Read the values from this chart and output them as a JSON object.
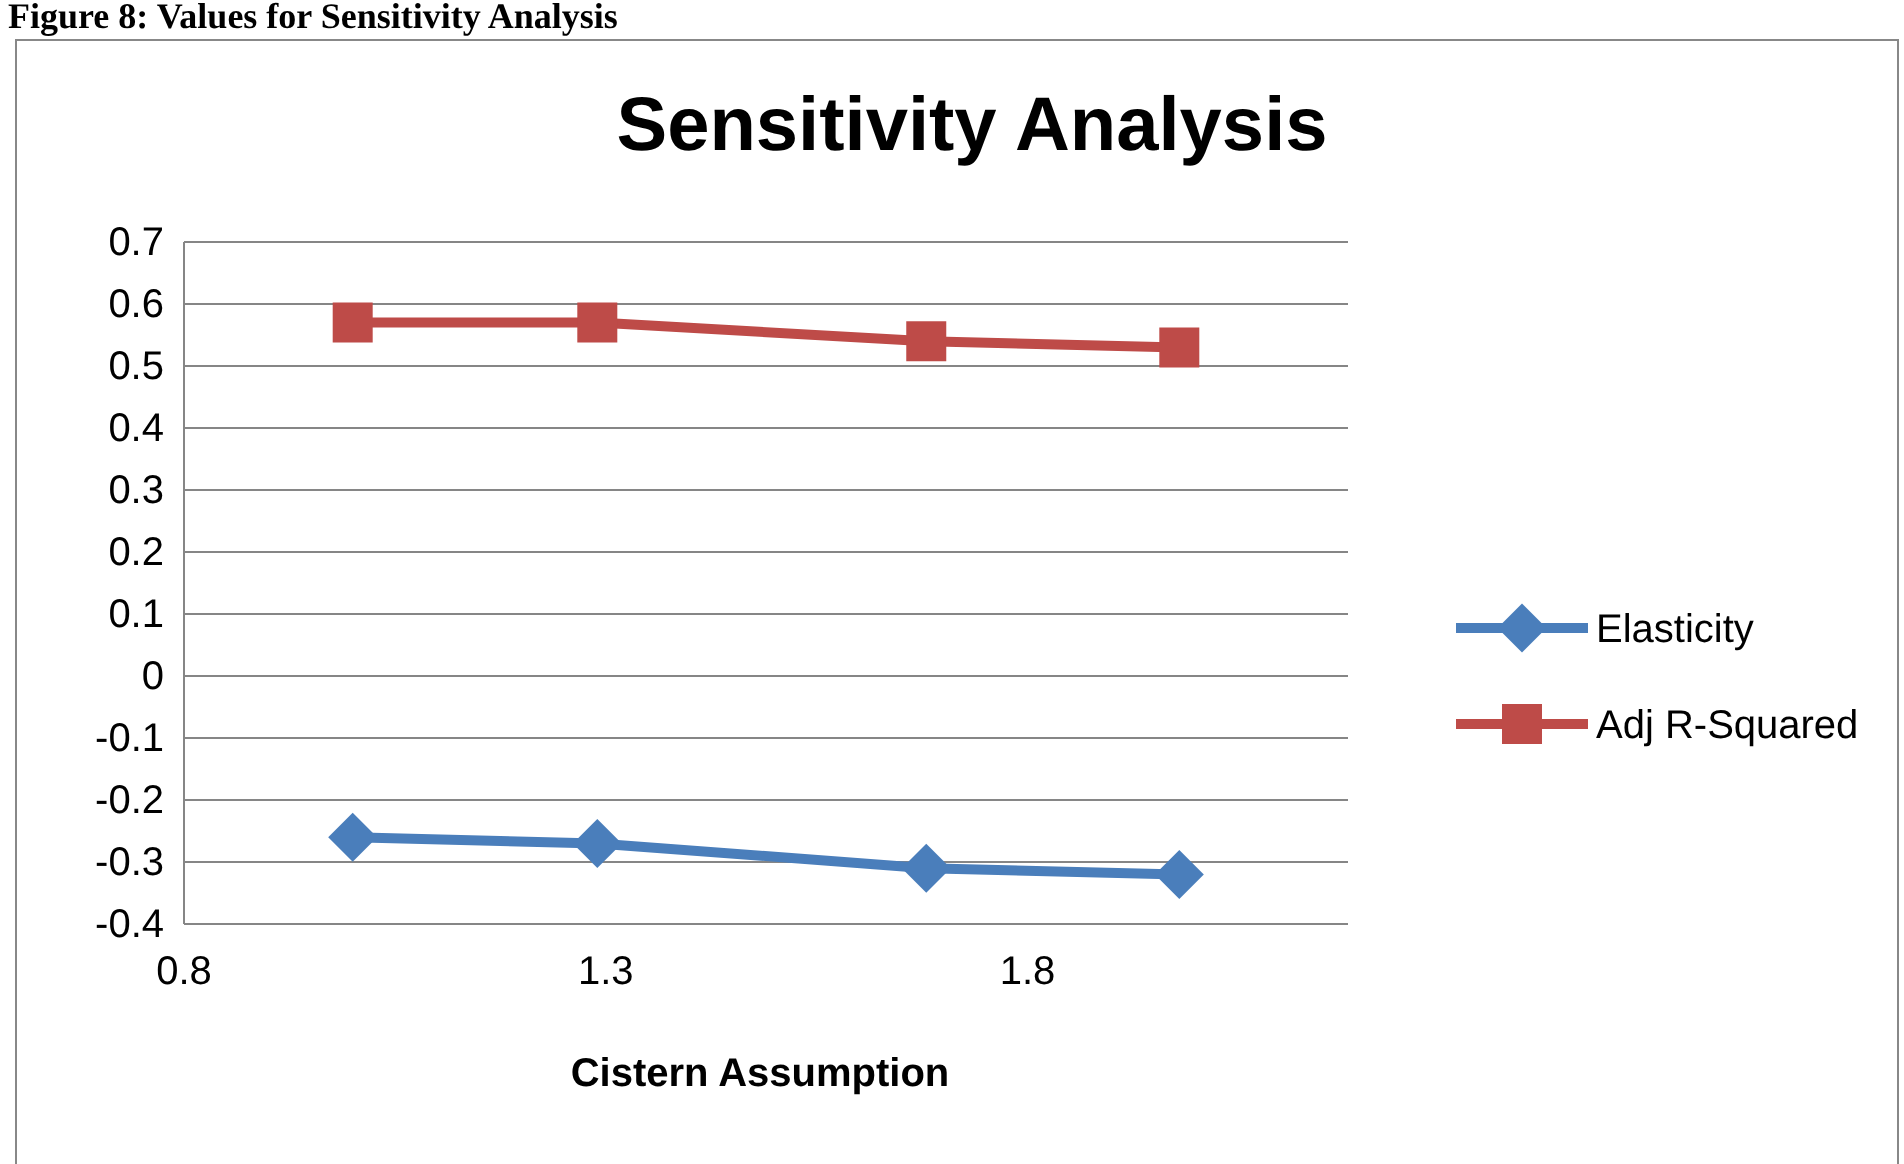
{
  "chart_data": {
    "type": "line",
    "title": "Sensitivity Analysis",
    "xlabel": "Cistern Assumption",
    "annotations": [
      "Figure 8: Values for Sensitivity Analysis"
    ],
    "x": [
      1.0,
      1.29,
      1.68,
      1.98
    ],
    "series": [
      {
        "name": "Elasticity",
        "color": "#4a7ebb",
        "values": [
          -0.26,
          -0.27,
          -0.31,
          -0.32
        ],
        "marker": "diamond"
      },
      {
        "name": "Adj R-Squared",
        "color": "#be4b48",
        "values": [
          0.57,
          0.57,
          0.54,
          0.53
        ],
        "marker": "square"
      }
    ],
    "xlim": [
      0.8,
      2.18
    ],
    "xticks": [
      0.8,
      1.3,
      1.8
    ],
    "ylim": [
      -0.4,
      0.7
    ],
    "yticks": [
      -0.4,
      -0.3,
      -0.2,
      -0.1,
      0,
      0.1,
      0.2,
      0.3,
      0.4,
      0.5,
      0.6,
      0.7
    ],
    "grid": "y",
    "legend": "right",
    "line_style": "solid"
  }
}
